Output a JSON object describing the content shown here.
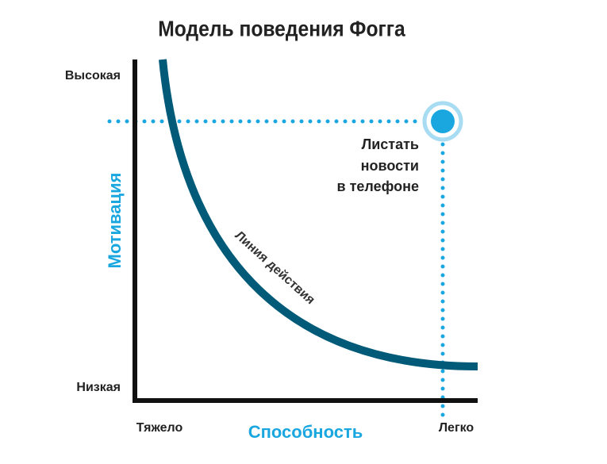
{
  "title": "Модель поведения Фогга",
  "y_axis": {
    "title": "Мотивация",
    "high": "Высокая",
    "low": "Низкая"
  },
  "x_axis": {
    "title": "Способность",
    "low": "Тяжело",
    "high": "Легко"
  },
  "curve_label": "Линия действия",
  "point": {
    "label_lines": [
      "Листать",
      "новости",
      "в телефоне"
    ]
  }
}
